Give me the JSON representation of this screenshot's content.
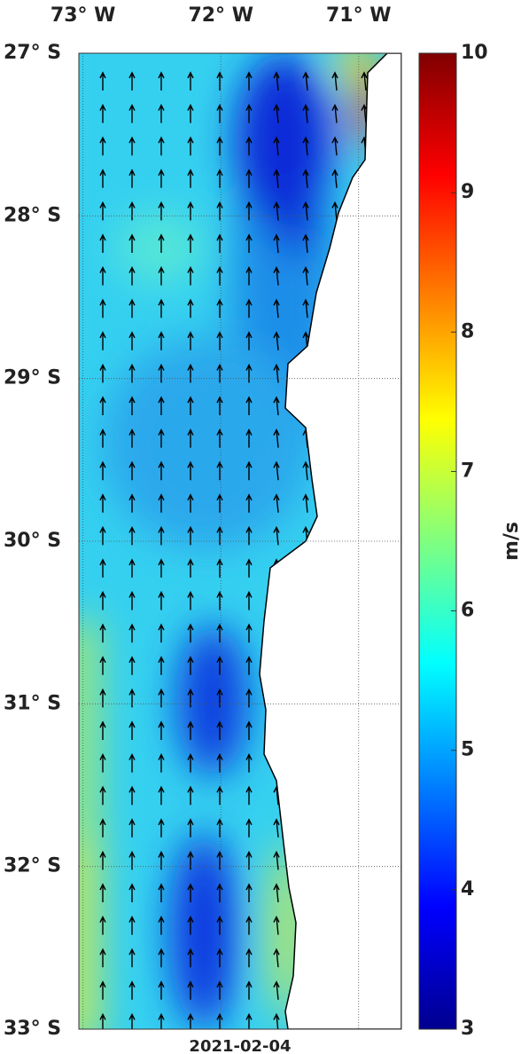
{
  "map": {
    "xlim": [
      -73.03,
      -70.69
    ],
    "ylim": [
      -33,
      -27
    ],
    "xticks": [
      {
        "value": -73,
        "label": "73° W"
      },
      {
        "value": -72,
        "label": "72° W"
      },
      {
        "value": -71,
        "label": "71° W"
      }
    ],
    "yticks": [
      {
        "value": -27,
        "label": "27° S"
      },
      {
        "value": -28,
        "label": "28° S"
      },
      {
        "value": -29,
        "label": "29° S"
      },
      {
        "value": -30,
        "label": "30° S"
      },
      {
        "value": -31,
        "label": "31° S"
      },
      {
        "value": -32,
        "label": "32° S"
      },
      {
        "value": -33,
        "label": "33° S"
      }
    ],
    "date": "2021-02-04"
  },
  "colorbar": {
    "label": "m/s",
    "lim": [
      3,
      10
    ],
    "ticks": [
      3,
      4,
      5,
      6,
      7,
      8,
      9,
      10
    ]
  }
}
